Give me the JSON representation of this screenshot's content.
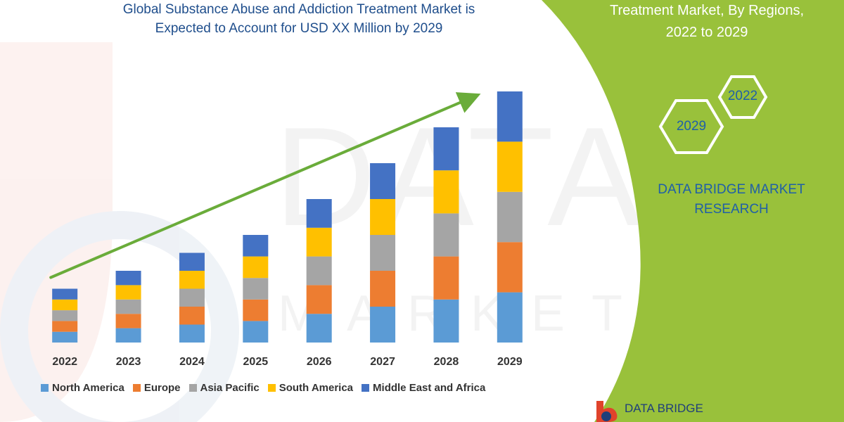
{
  "page": {
    "title_line1": "Global Substance Abuse and Addiction Treatment Market is",
    "title_line2": "Expected to Account for USD XX Million by 2029"
  },
  "panel": {
    "title_line1": "Treatment Market, By Regions,",
    "title_line2": "2022 to 2029",
    "hex_top": "2022",
    "hex_bottom": "2029",
    "brand_line1": "DATA BRIDGE MARKET",
    "brand_line2": "RESEARCH",
    "footer_logo_text": "DATA BRIDGE",
    "watermark_text": "DATA BRIDGE",
    "watermark_subtext": "MARKET RESEARCH",
    "colors": {
      "green": "#99c13b",
      "brand_blue": "#1f5fa8"
    }
  },
  "chart_data": {
    "type": "bar",
    "stacked": true,
    "categories": [
      "2022",
      "2023",
      "2024",
      "2025",
      "2026",
      "2027",
      "2028",
      "2029"
    ],
    "series": [
      {
        "name": "North America",
        "color": "#5b9bd5",
        "values": [
          15,
          20,
          25,
          30,
          40,
          50,
          60,
          70
        ]
      },
      {
        "name": "Europe",
        "color": "#ed7d31",
        "values": [
          15,
          20,
          25,
          30,
          40,
          50,
          60,
          70
        ]
      },
      {
        "name": "Asia Pacific",
        "color": "#a5a5a5",
        "values": [
          15,
          20,
          25,
          30,
          40,
          50,
          60,
          70
        ]
      },
      {
        "name": "South America",
        "color": "#ffc000",
        "values": [
          15,
          20,
          25,
          30,
          40,
          50,
          60,
          70
        ]
      },
      {
        "name": "Middle East and Africa",
        "color": "#4472c4",
        "values": [
          15,
          20,
          25,
          30,
          40,
          50,
          60,
          70
        ]
      }
    ],
    "ylim": [
      0,
      350
    ],
    "trend_arrow": true,
    "arrow_color": "#6aac3a",
    "legend_position": "bottom",
    "grid": false
  }
}
